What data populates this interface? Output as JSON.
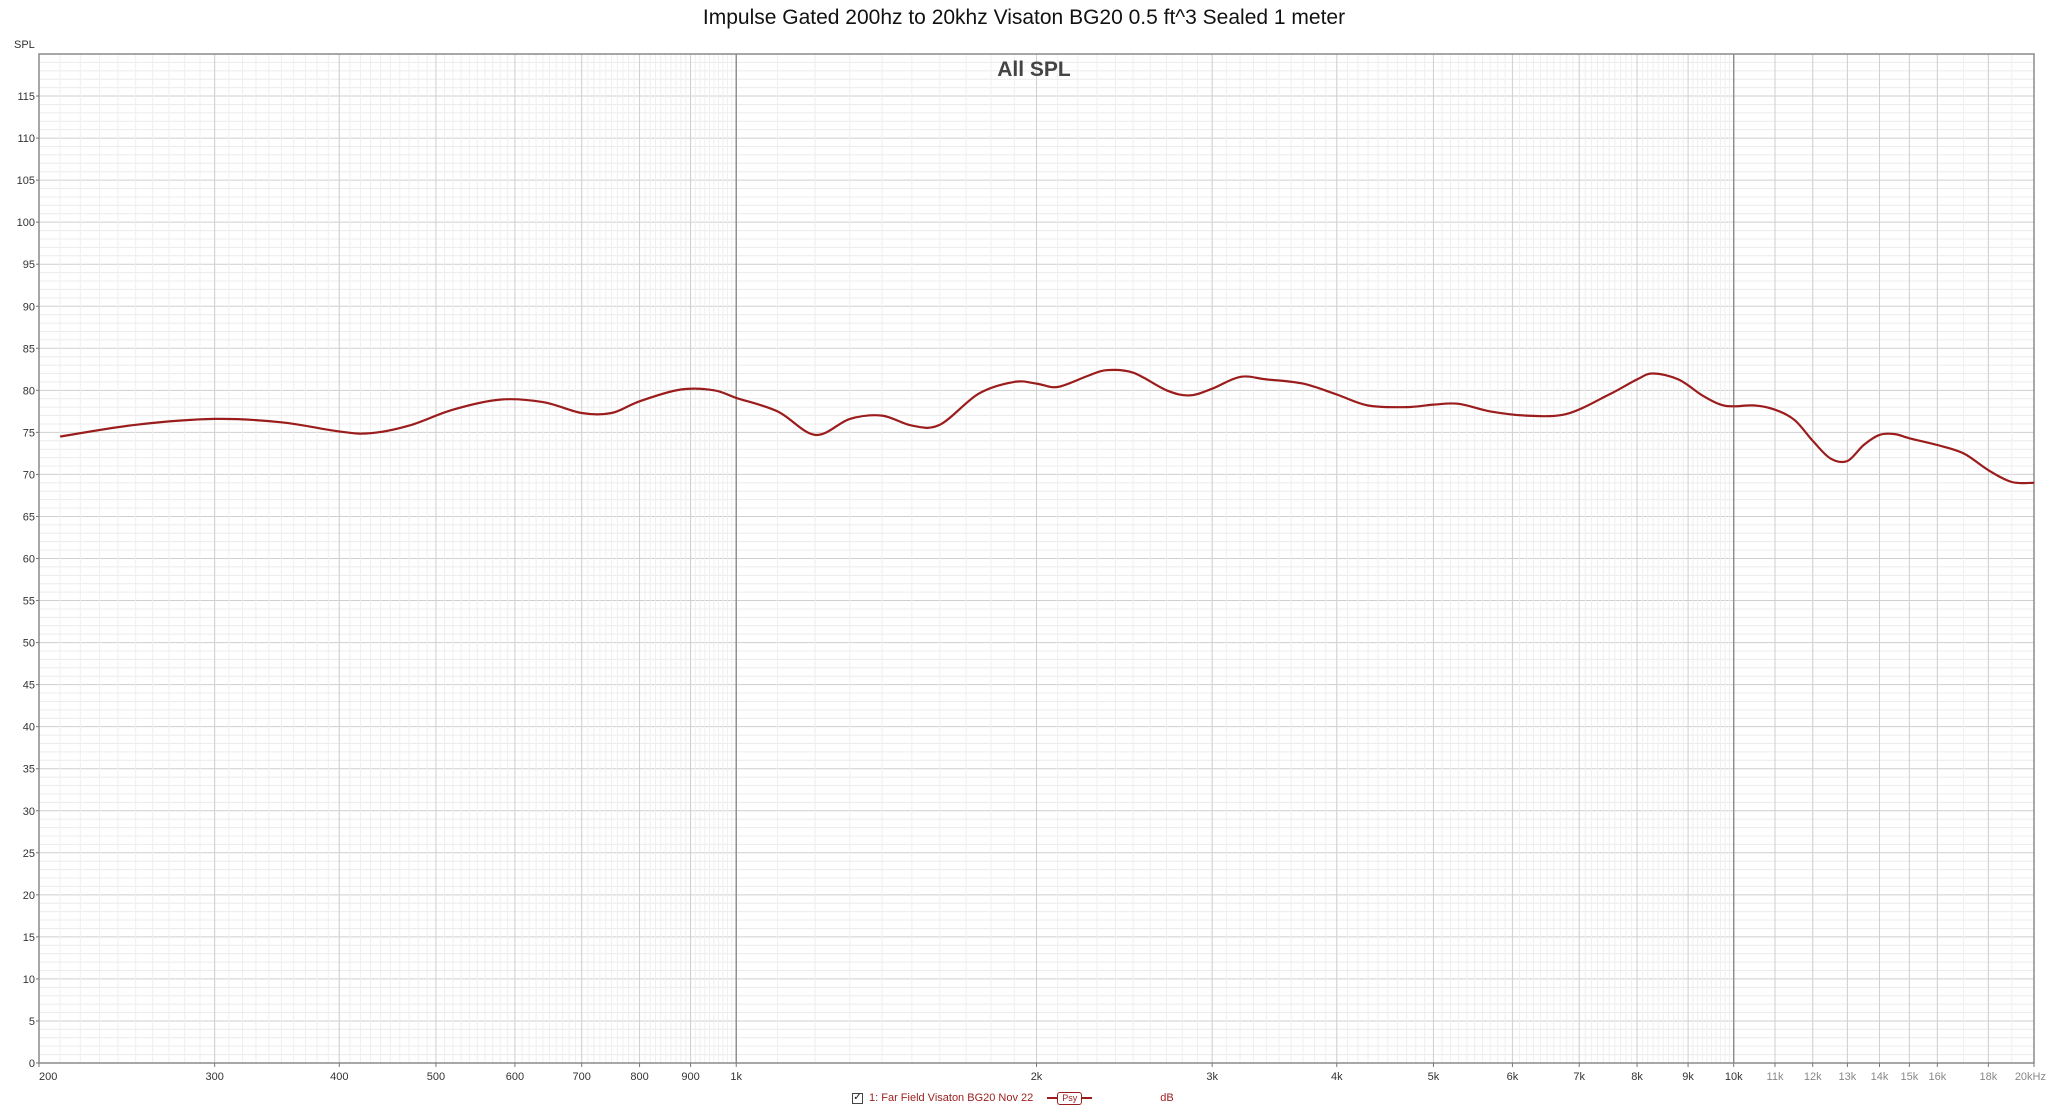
{
  "window": {
    "title": "Impulse Gated 200hz to 20khz Visaton BG20 0.5 ft^3 Sealed 1 meter"
  },
  "chart_data": {
    "type": "line",
    "title": "All SPL",
    "ylabel": "SPL",
    "xlabel": "",
    "xscale": "log",
    "xlim": [
      200,
      20000
    ],
    "ylim": [
      0,
      120
    ],
    "grid": true,
    "ytick_step": 5,
    "ytick_labels_max": 115,
    "xtick_labels": [
      {
        "value": 200,
        "label": "200"
      },
      {
        "value": 300,
        "label": "300"
      },
      {
        "value": 400,
        "label": "400"
      },
      {
        "value": 500,
        "label": "500"
      },
      {
        "value": 600,
        "label": "600"
      },
      {
        "value": 700,
        "label": "700"
      },
      {
        "value": 800,
        "label": "800"
      },
      {
        "value": 900,
        "label": "900"
      },
      {
        "value": 1000,
        "label": "1k"
      },
      {
        "value": 2000,
        "label": "2k"
      },
      {
        "value": 3000,
        "label": "3k"
      },
      {
        "value": 4000,
        "label": "4k"
      },
      {
        "value": 5000,
        "label": "5k"
      },
      {
        "value": 6000,
        "label": "6k"
      },
      {
        "value": 7000,
        "label": "7k"
      },
      {
        "value": 8000,
        "label": "8k"
      },
      {
        "value": 9000,
        "label": "9k"
      },
      {
        "value": 10000,
        "label": "10k"
      },
      {
        "value": 11000,
        "label": "11k"
      },
      {
        "value": 12000,
        "label": "12k"
      },
      {
        "value": 13000,
        "label": "13k"
      },
      {
        "value": 14000,
        "label": "14k"
      },
      {
        "value": 15000,
        "label": "15k"
      },
      {
        "value": 16000,
        "label": "16k"
      },
      {
        "value": 18000,
        "label": "18k"
      },
      {
        "value": 20000,
        "label": "20kHz"
      }
    ],
    "series": [
      {
        "name": "1: Far Field Visaton BG20 Nov 22",
        "color": "#9b1c1c",
        "x": [
          210,
          250,
          300,
          350,
          400,
          430,
          470,
          520,
          580,
          640,
          700,
          750,
          800,
          880,
          950,
          1000,
          1100,
          1200,
          1300,
          1400,
          1500,
          1600,
          1750,
          1900,
          2000,
          2100,
          2250,
          2350,
          2500,
          2700,
          2850,
          3000,
          3200,
          3400,
          3700,
          4000,
          4300,
          4700,
          5000,
          5300,
          5700,
          6200,
          6800,
          7500,
          8000,
          8300,
          8800,
          9300,
          9700,
          10000,
          10500,
          11000,
          11500,
          12000,
          12500,
          13000,
          13500,
          14000,
          14500,
          15000,
          16000,
          17000,
          18000,
          19000,
          20000
        ],
        "y": [
          74.5,
          75.9,
          76.6,
          76.2,
          75.1,
          74.9,
          75.8,
          77.7,
          78.9,
          78.6,
          77.3,
          77.3,
          78.7,
          80.1,
          80.0,
          79.1,
          77.5,
          74.7,
          76.6,
          77.0,
          75.8,
          75.9,
          79.6,
          81.0,
          80.8,
          80.4,
          81.7,
          82.4,
          82.1,
          80.0,
          79.4,
          80.2,
          81.6,
          81.3,
          80.8,
          79.5,
          78.2,
          78.0,
          78.3,
          78.4,
          77.5,
          77.0,
          77.2,
          79.5,
          81.3,
          82.0,
          81.3,
          79.4,
          78.3,
          78.1,
          78.2,
          77.7,
          76.5,
          74.0,
          71.9,
          71.6,
          73.5,
          74.7,
          74.8,
          74.3,
          73.5,
          72.5,
          70.5,
          69.1,
          69.0
        ]
      }
    ]
  },
  "legend": {
    "check_mark": "✓",
    "series_label": "1: Far Field Visaton BG20 Nov 22",
    "smoothing_label": "Psy",
    "unit_label": "dB"
  }
}
